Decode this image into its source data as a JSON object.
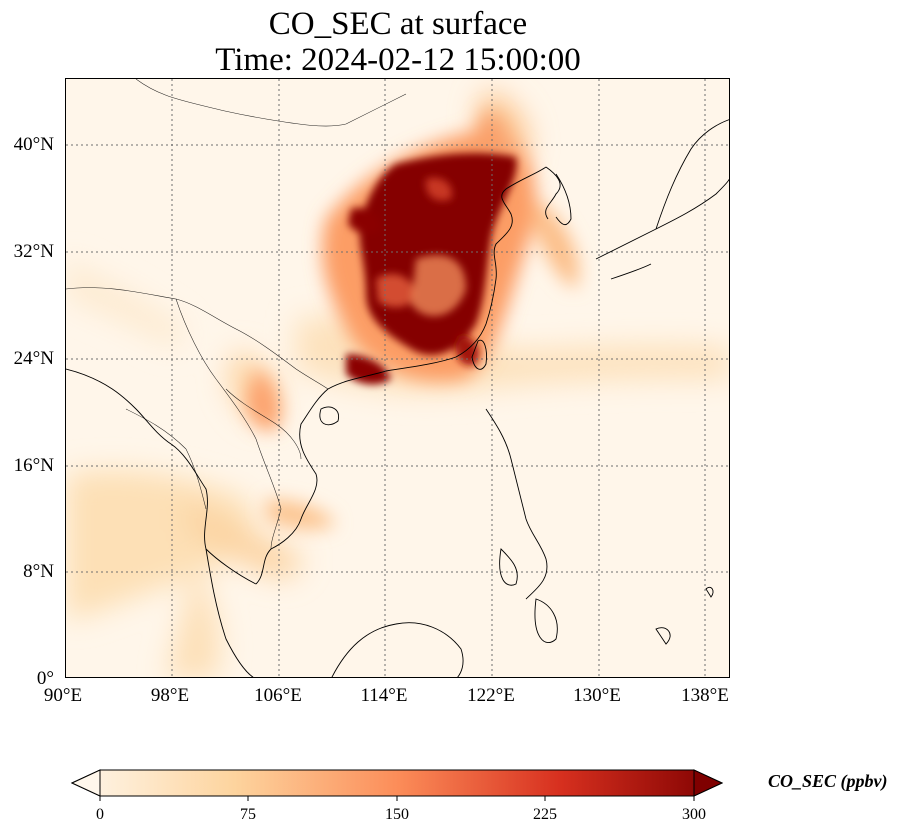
{
  "title": {
    "line1": "CO_SEC at surface",
    "line2": "Time: 2024-02-12 15:00:00"
  },
  "map": {
    "projection": "PlateCarree",
    "lon_range": [
      90,
      139
    ],
    "lat_range": [
      0,
      45
    ],
    "gridlines": "dotted",
    "coastlines": true,
    "borders": true,
    "colormap": "OrRd",
    "y_ticks": [
      "40°N",
      "32°N",
      "24°N",
      "16°N",
      "8°N",
      "0°"
    ],
    "x_ticks": [
      "90°E",
      "98°E",
      "106°E",
      "114°E",
      "122°E",
      "130°E",
      "138°E"
    ]
  },
  "colorbar": {
    "label": "CO_SEC (ppbv)",
    "ticks": [
      "0",
      "75",
      "150",
      "225",
      "300"
    ],
    "min": 0,
    "max": 300,
    "extend": "both",
    "colors": [
      "#fff7ec",
      "#fdd49e",
      "#fc8d59",
      "#d7301f",
      "#7f0000"
    ]
  }
}
